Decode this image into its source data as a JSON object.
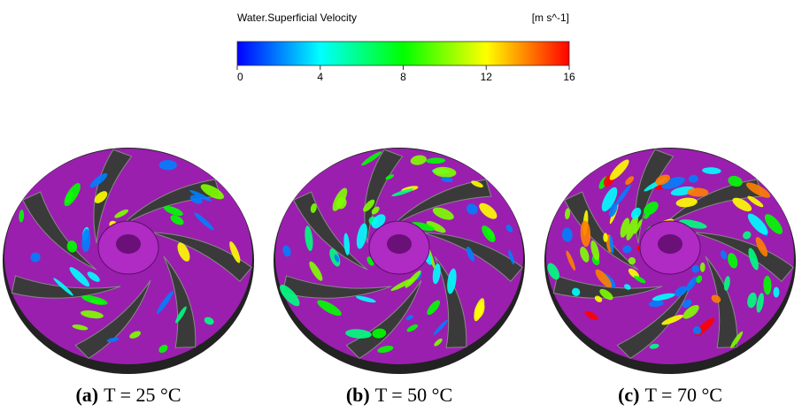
{
  "colorbar": {
    "title": "Water.Superficial Velocity",
    "unit": "[m s^-1]",
    "range": [
      0,
      16
    ],
    "ticks": [
      0,
      4,
      8,
      12,
      16
    ],
    "colors": [
      "#0000ff",
      "#0080ff",
      "#00ffff",
      "#00ff80",
      "#00ff00",
      "#80ff00",
      "#ffff00",
      "#ff8000",
      "#ff0000"
    ]
  },
  "panels": [
    {
      "tag": "(a)",
      "caption": "T = 25 °C"
    },
    {
      "tag": "(b)",
      "caption": "T = 50 °C"
    },
    {
      "tag": "(c)",
      "caption": "T = 70 °C"
    }
  ]
}
